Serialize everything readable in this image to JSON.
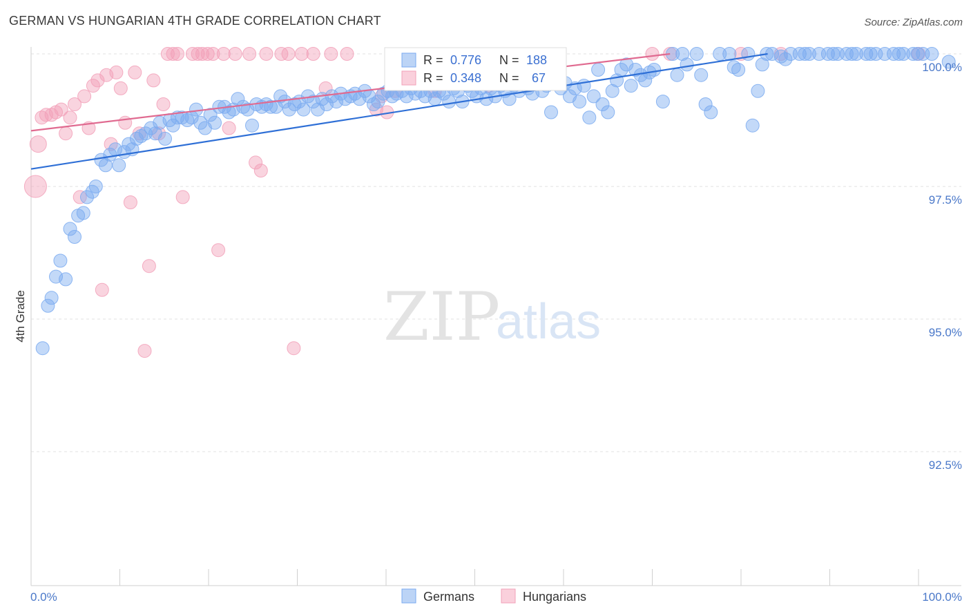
{
  "title": "GERMAN VS HUNGARIAN 4TH GRADE CORRELATION CHART",
  "source": "Source: ZipAtlas.com",
  "watermark": {
    "zip": "ZIP",
    "atlas": "atlas"
  },
  "legend_top": {
    "germans": {
      "r_label": "R =",
      "r_value": "0.776",
      "n_label": "N =",
      "n_value": "188"
    },
    "hungarians": {
      "r_label": "R =",
      "r_value": "0.348",
      "n_label": "N =",
      "n_value": "67"
    }
  },
  "legend_bottom": {
    "germans": "Germans",
    "hungarians": "Hungarians"
  },
  "colors": {
    "germans": "#7aaaf0",
    "germans_line": "#2e6fd6",
    "hungarians": "#f2a0b8",
    "hungarians_line": "#e06a90",
    "tick": "#4a78c9"
  },
  "chart_data": {
    "type": "scatter",
    "title": "GERMAN VS HUNGARIAN 4TH GRADE CORRELATION CHART",
    "xlabel": "",
    "ylabel": "4th Grade",
    "xlim": [
      0,
      100
    ],
    "ylim": [
      90.0,
      100.4
    ],
    "x_tick_labels": [
      "0.0%",
      "100.0%"
    ],
    "y_ticks": [
      92.5,
      95.0,
      97.5,
      100.0
    ],
    "y_tick_labels": [
      "92.5%",
      "95.0%",
      "97.5%",
      "100.0%"
    ],
    "grid": true,
    "legend_position": "top-center",
    "series": [
      {
        "name": "Germans",
        "r": 0.776,
        "n": 188,
        "trend": {
          "x": [
            0,
            83
          ],
          "y": [
            97.83,
            100.0
          ]
        },
        "points": [
          [
            1.3,
            94.45
          ],
          [
            1.9,
            95.25
          ],
          [
            2.3,
            95.4
          ],
          [
            2.8,
            95.8
          ],
          [
            3.3,
            96.1
          ],
          [
            3.9,
            95.75
          ],
          [
            4.4,
            96.7
          ],
          [
            4.9,
            96.55
          ],
          [
            5.3,
            96.95
          ],
          [
            5.9,
            97.0
          ],
          [
            6.3,
            97.3
          ],
          [
            6.9,
            97.4
          ],
          [
            7.3,
            97.5
          ],
          [
            7.9,
            98.0
          ],
          [
            8.4,
            97.9
          ],
          [
            8.9,
            98.1
          ],
          [
            9.5,
            98.2
          ],
          [
            9.9,
            97.9
          ],
          [
            10.5,
            98.15
          ],
          [
            11.0,
            98.3
          ],
          [
            11.4,
            98.2
          ],
          [
            11.9,
            98.4
          ],
          [
            12.4,
            98.45
          ],
          [
            12.9,
            98.5
          ],
          [
            13.5,
            98.6
          ],
          [
            14.0,
            98.5
          ],
          [
            14.5,
            98.7
          ],
          [
            15.1,
            98.4
          ],
          [
            15.6,
            98.75
          ],
          [
            16.0,
            98.65
          ],
          [
            16.5,
            98.8
          ],
          [
            17.0,
            98.8
          ],
          [
            17.6,
            98.75
          ],
          [
            18.1,
            98.8
          ],
          [
            18.6,
            98.95
          ],
          [
            19.1,
            98.7
          ],
          [
            19.6,
            98.6
          ],
          [
            20.2,
            98.85
          ],
          [
            20.7,
            98.7
          ],
          [
            21.2,
            99.0
          ],
          [
            21.8,
            99.0
          ],
          [
            22.3,
            98.9
          ],
          [
            22.8,
            98.95
          ],
          [
            23.3,
            99.15
          ],
          [
            23.9,
            99.0
          ],
          [
            24.4,
            98.95
          ],
          [
            24.9,
            98.65
          ],
          [
            25.4,
            99.05
          ],
          [
            26.0,
            99.0
          ],
          [
            26.5,
            99.05
          ],
          [
            27.0,
            99.0
          ],
          [
            27.6,
            99.0
          ],
          [
            28.1,
            99.2
          ],
          [
            28.6,
            99.1
          ],
          [
            29.1,
            98.95
          ],
          [
            29.7,
            99.05
          ],
          [
            30.2,
            99.1
          ],
          [
            30.7,
            98.95
          ],
          [
            31.2,
            99.2
          ],
          [
            31.8,
            99.1
          ],
          [
            32.3,
            98.95
          ],
          [
            32.8,
            99.15
          ],
          [
            33.3,
            99.05
          ],
          [
            33.9,
            99.2
          ],
          [
            34.4,
            99.1
          ],
          [
            34.9,
            99.25
          ],
          [
            35.4,
            99.15
          ],
          [
            36.0,
            99.2
          ],
          [
            36.5,
            99.25
          ],
          [
            37.0,
            99.15
          ],
          [
            37.6,
            99.3
          ],
          [
            38.1,
            99.2
          ],
          [
            38.6,
            99.05
          ],
          [
            39.1,
            99.1
          ],
          [
            39.7,
            99.25
          ],
          [
            40.2,
            99.3
          ],
          [
            40.7,
            99.2
          ],
          [
            41.2,
            99.25
          ],
          [
            41.8,
            99.3
          ],
          [
            42.3,
            99.2
          ],
          [
            42.8,
            99.35
          ],
          [
            43.3,
            99.25
          ],
          [
            43.9,
            99.3
          ],
          [
            44.4,
            99.2
          ],
          [
            45.0,
            99.3
          ],
          [
            45.5,
            99.15
          ],
          [
            46.0,
            99.3
          ],
          [
            46.5,
            99.25
          ],
          [
            47.1,
            99.1
          ],
          [
            47.6,
            99.35
          ],
          [
            48.1,
            99.3
          ],
          [
            48.6,
            99.1
          ],
          [
            49.2,
            99.4
          ],
          [
            49.7,
            99.3
          ],
          [
            50.2,
            99.2
          ],
          [
            50.7,
            99.35
          ],
          [
            51.3,
            99.15
          ],
          [
            51.8,
            99.35
          ],
          [
            52.3,
            99.2
          ],
          [
            52.9,
            99.4
          ],
          [
            53.4,
            99.3
          ],
          [
            53.9,
            99.15
          ],
          [
            54.4,
            99.4
          ],
          [
            55.0,
            99.3
          ],
          [
            55.5,
            99.45
          ],
          [
            56.0,
            99.35
          ],
          [
            56.5,
            99.25
          ],
          [
            57.1,
            99.5
          ],
          [
            57.6,
            99.3
          ],
          [
            58.1,
            99.4
          ],
          [
            58.6,
            98.9
          ],
          [
            59.2,
            99.5
          ],
          [
            59.7,
            99.35
          ],
          [
            60.2,
            99.45
          ],
          [
            60.7,
            99.2
          ],
          [
            61.3,
            99.35
          ],
          [
            61.8,
            99.1
          ],
          [
            62.3,
            99.4
          ],
          [
            62.9,
            98.8
          ],
          [
            63.4,
            99.2
          ],
          [
            63.9,
            99.7
          ],
          [
            64.4,
            99.05
          ],
          [
            65.0,
            98.9
          ],
          [
            65.5,
            99.3
          ],
          [
            66.0,
            99.5
          ],
          [
            66.5,
            99.7
          ],
          [
            67.1,
            99.8
          ],
          [
            67.6,
            99.4
          ],
          [
            68.1,
            99.7
          ],
          [
            68.7,
            99.6
          ],
          [
            69.2,
            99.5
          ],
          [
            69.7,
            99.65
          ],
          [
            70.2,
            99.7
          ],
          [
            71.2,
            99.1
          ],
          [
            72.3,
            100.0
          ],
          [
            72.8,
            99.6
          ],
          [
            73.4,
            100.0
          ],
          [
            73.9,
            99.8
          ],
          [
            75.0,
            100.0
          ],
          [
            75.5,
            99.6
          ],
          [
            76.0,
            99.05
          ],
          [
            76.6,
            98.9
          ],
          [
            77.6,
            100.0
          ],
          [
            78.7,
            100.0
          ],
          [
            79.2,
            99.75
          ],
          [
            79.7,
            99.7
          ],
          [
            80.8,
            100.0
          ],
          [
            81.3,
            98.65
          ],
          [
            81.9,
            99.3
          ],
          [
            82.4,
            99.8
          ],
          [
            82.9,
            100.0
          ],
          [
            83.5,
            100.0
          ],
          [
            84.5,
            99.95
          ],
          [
            85.0,
            99.9
          ],
          [
            85.6,
            100.0
          ],
          [
            86.6,
            100.0
          ],
          [
            87.2,
            100.0
          ],
          [
            87.7,
            100.0
          ],
          [
            88.8,
            100.0
          ],
          [
            89.8,
            100.0
          ],
          [
            90.4,
            100.0
          ],
          [
            90.9,
            100.0
          ],
          [
            91.9,
            100.0
          ],
          [
            92.5,
            100.0
          ],
          [
            93.0,
            100.0
          ],
          [
            94.1,
            100.0
          ],
          [
            94.6,
            100.0
          ],
          [
            95.2,
            100.0
          ],
          [
            96.2,
            100.0
          ],
          [
            97.2,
            100.0
          ],
          [
            97.8,
            100.0
          ],
          [
            98.3,
            100.0
          ],
          [
            99.4,
            100.0
          ],
          [
            99.9,
            100.0
          ],
          [
            100.5,
            100.0
          ],
          [
            101.5,
            100.0
          ],
          [
            103.4,
            99.85
          ]
        ]
      },
      {
        "name": "Hungarians",
        "r": 0.348,
        "n": 67,
        "trend": {
          "x": [
            0,
            72
          ],
          "y": [
            98.55,
            100.0
          ]
        },
        "points": [
          [
            0.5,
            97.5
          ],
          [
            0.8,
            98.3
          ],
          [
            1.2,
            98.8
          ],
          [
            1.7,
            98.85
          ],
          [
            2.3,
            98.85
          ],
          [
            2.8,
            98.9
          ],
          [
            3.4,
            98.95
          ],
          [
            3.9,
            98.5
          ],
          [
            4.4,
            98.8
          ],
          [
            4.9,
            99.05
          ],
          [
            5.5,
            97.3
          ],
          [
            6.0,
            99.2
          ],
          [
            6.5,
            98.6
          ],
          [
            7.0,
            99.4
          ],
          [
            7.5,
            99.5
          ],
          [
            8.0,
            95.55
          ],
          [
            8.5,
            99.6
          ],
          [
            9.0,
            98.3
          ],
          [
            9.6,
            99.65
          ],
          [
            10.1,
            99.35
          ],
          [
            10.6,
            98.7
          ],
          [
            11.2,
            97.2
          ],
          [
            11.7,
            99.65
          ],
          [
            12.2,
            98.5
          ],
          [
            12.8,
            94.4
          ],
          [
            13.3,
            96.0
          ],
          [
            13.8,
            99.5
          ],
          [
            14.4,
            98.5
          ],
          [
            14.9,
            99.05
          ],
          [
            15.4,
            100.0
          ],
          [
            16.0,
            100.0
          ],
          [
            16.5,
            100.0
          ],
          [
            17.1,
            97.3
          ],
          [
            18.2,
            100.0
          ],
          [
            18.8,
            100.0
          ],
          [
            19.3,
            100.0
          ],
          [
            19.9,
            100.0
          ],
          [
            20.5,
            100.0
          ],
          [
            21.1,
            96.3
          ],
          [
            21.7,
            100.0
          ],
          [
            22.3,
            98.6
          ],
          [
            23.0,
            100.0
          ],
          [
            24.6,
            100.0
          ],
          [
            25.3,
            97.95
          ],
          [
            25.9,
            97.8
          ],
          [
            26.5,
            100.0
          ],
          [
            28.2,
            100.0
          ],
          [
            29.0,
            100.0
          ],
          [
            29.6,
            94.45
          ],
          [
            30.5,
            100.0
          ],
          [
            31.8,
            100.0
          ],
          [
            33.2,
            99.35
          ],
          [
            33.8,
            100.0
          ],
          [
            35.6,
            100.0
          ],
          [
            38.9,
            98.95
          ],
          [
            39.5,
            99.2
          ],
          [
            40.1,
            98.9
          ],
          [
            41.0,
            99.3
          ],
          [
            45.5,
            99.3
          ],
          [
            46.5,
            99.5
          ],
          [
            51.6,
            99.4
          ],
          [
            52.7,
            99.6
          ],
          [
            53.3,
            99.8
          ],
          [
            70.0,
            100.0
          ],
          [
            72.0,
            100.0
          ],
          [
            80.0,
            100.0
          ],
          [
            84.5,
            100.0
          ],
          [
            100.0,
            100.0
          ]
        ]
      }
    ]
  }
}
